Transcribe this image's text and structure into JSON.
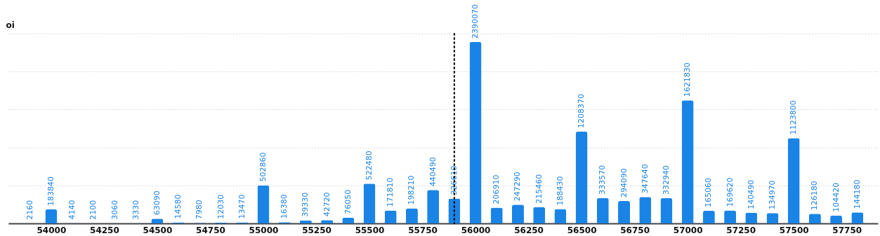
{
  "chart_data": {
    "type": "bar",
    "ylabel": "oi",
    "x": [
      53900,
      54000,
      54100,
      54200,
      54300,
      54400,
      54500,
      54600,
      54700,
      54800,
      54900,
      55000,
      55100,
      55200,
      55300,
      55400,
      55500,
      55600,
      55700,
      55800,
      55900,
      56000,
      56100,
      56200,
      56300,
      56400,
      56500,
      56600,
      56700,
      56800,
      56900,
      57000,
      57100,
      57200,
      57300,
      57400,
      57500,
      57600,
      57700,
      57800
    ],
    "values": [
      2160,
      183840,
      4140,
      2100,
      3060,
      3330,
      63090,
      14580,
      7980,
      12030,
      13470,
      502860,
      16380,
      39330,
      42720,
      76050,
      522480,
      171810,
      198210,
      440490,
      326610,
      2390070,
      206910,
      247290,
      215460,
      188430,
      1208370,
      333570,
      294090,
      347640,
      332940,
      1621830,
      165060,
      169620,
      140490,
      134970,
      1123800,
      126180,
      104420,
      144180
    ],
    "color": "#1a84e6",
    "data_labels": true,
    "xlim": [
      53815,
      57880
    ],
    "xticks": [
      54000,
      54250,
      54500,
      54750,
      55000,
      55250,
      55500,
      55750,
      56000,
      56250,
      56500,
      56750,
      57000,
      57250,
      57500,
      57750
    ],
    "ylim": [
      0,
      2500000
    ],
    "yticks": [
      {
        "value": 0,
        "label": null
      },
      {
        "value": 500000,
        "label": null
      },
      {
        "value": 1000000,
        "label": null
      },
      {
        "value": 1500000,
        "label": null
      },
      {
        "value": 2000000,
        "label": null
      },
      {
        "value": 2500000,
        "label": null
      }
    ],
    "grid": "y",
    "ref_lines": [
      {
        "axis": "x",
        "value": 55900,
        "color": "#000000",
        "line_style": "dotted"
      }
    ]
  }
}
